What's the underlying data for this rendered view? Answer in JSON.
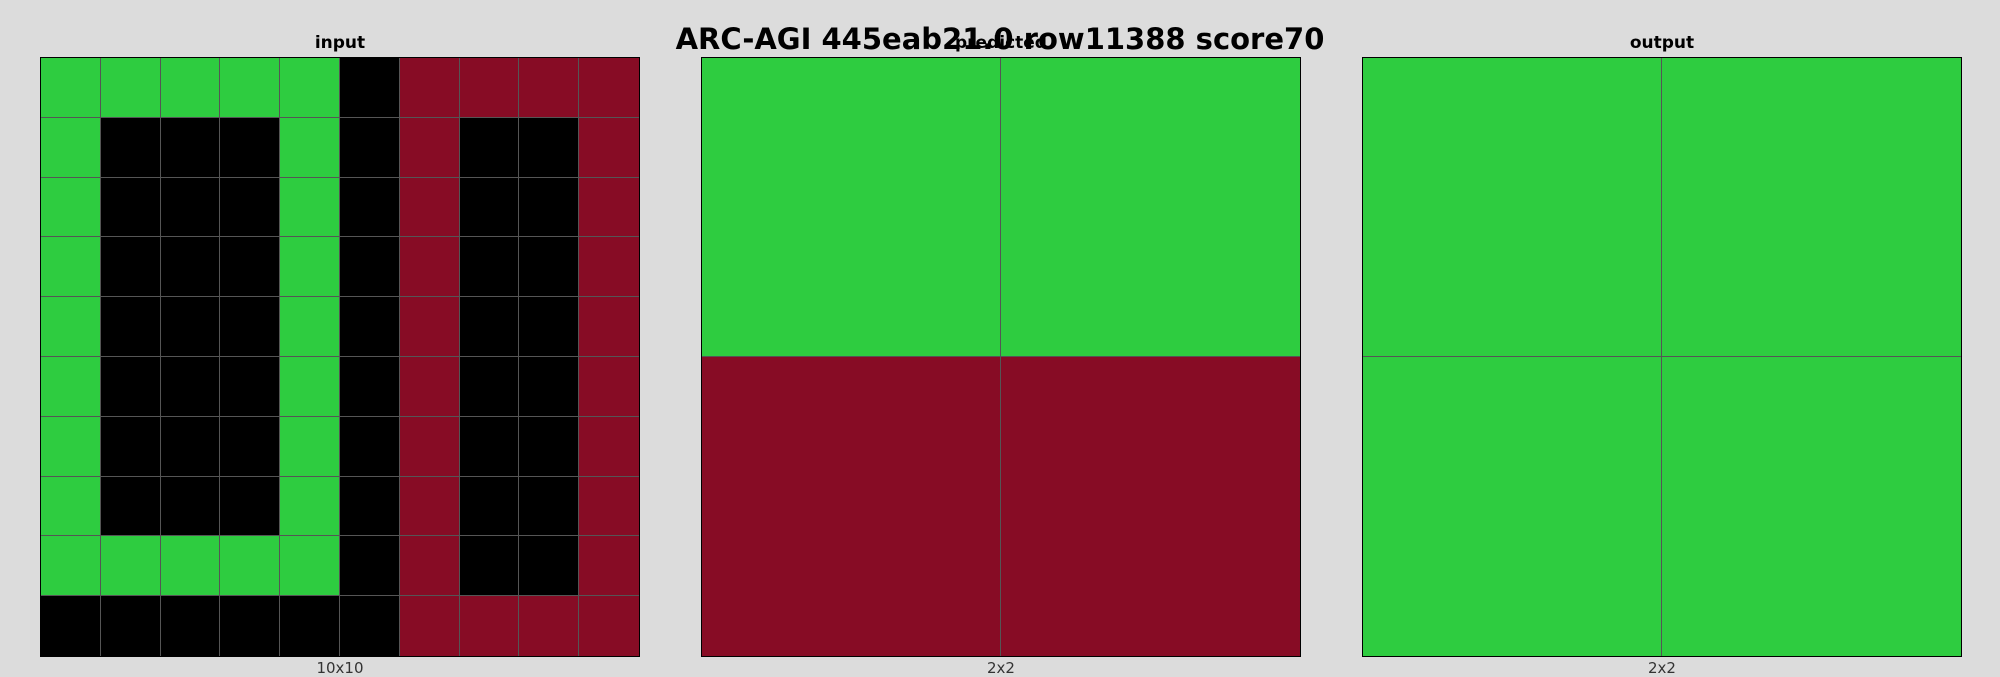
{
  "title": "ARC-AGI 445eab21.0 row11388 score70",
  "palette": {
    "0": "#000000",
    "2": "#870c25",
    "3": "#2ecc40"
  },
  "panels": [
    {
      "label": "input",
      "dims": "10x10",
      "rows": [
        [
          3,
          3,
          3,
          3,
          3,
          0,
          2,
          2,
          2,
          2
        ],
        [
          3,
          0,
          0,
          0,
          3,
          0,
          2,
          0,
          0,
          2
        ],
        [
          3,
          0,
          0,
          0,
          3,
          0,
          2,
          0,
          0,
          2
        ],
        [
          3,
          0,
          0,
          0,
          3,
          0,
          2,
          0,
          0,
          2
        ],
        [
          3,
          0,
          0,
          0,
          3,
          0,
          2,
          0,
          0,
          2
        ],
        [
          3,
          0,
          0,
          0,
          3,
          0,
          2,
          0,
          0,
          2
        ],
        [
          3,
          0,
          0,
          0,
          3,
          0,
          2,
          0,
          0,
          2
        ],
        [
          3,
          0,
          0,
          0,
          3,
          0,
          2,
          0,
          0,
          2
        ],
        [
          3,
          3,
          3,
          3,
          3,
          0,
          2,
          0,
          0,
          2
        ],
        [
          0,
          0,
          0,
          0,
          0,
          0,
          2,
          2,
          2,
          2
        ]
      ]
    },
    {
      "label": "predicted",
      "dims": "2x2",
      "rows": [
        [
          3,
          3
        ],
        [
          2,
          2
        ]
      ]
    },
    {
      "label": "output",
      "dims": "2x2",
      "rows": [
        [
          3,
          3
        ],
        [
          3,
          3
        ]
      ]
    }
  ]
}
